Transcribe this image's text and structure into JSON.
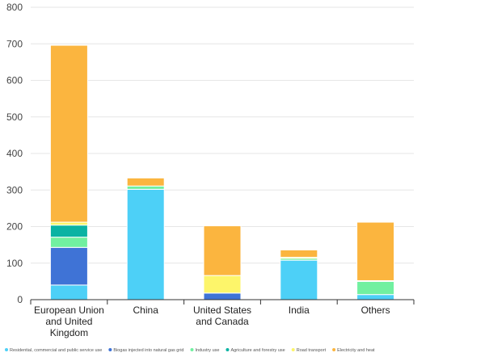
{
  "chart_data": {
    "type": "bar",
    "stacked": true,
    "categories": [
      [
        "European Union",
        "and United",
        "Kingdom"
      ],
      [
        "China"
      ],
      [
        "United States",
        "and Canada"
      ],
      [
        "India"
      ],
      [
        "Others"
      ]
    ],
    "ylim": [
      0,
      800
    ],
    "yticks": [
      0,
      100,
      200,
      300,
      400,
      500,
      600,
      700,
      800
    ],
    "grid": true,
    "legend_position": "bottom",
    "series": [
      {
        "name": "Residential, commercial and public service use",
        "color": "#4dd0f7",
        "values": [
          40,
          302,
          0,
          108,
          14
        ]
      },
      {
        "name": "Biogas injected into natural gas grid",
        "color": "#3f73d6",
        "values": [
          103,
          0,
          18,
          0,
          0
        ]
      },
      {
        "name": "Industry use",
        "color": "#71f0a0",
        "values": [
          28,
          9,
          0,
          5,
          36
        ]
      },
      {
        "name": "Agriculture and forestry use",
        "color": "#0ab3a3",
        "values": [
          33,
          0,
          0,
          0,
          0
        ]
      },
      {
        "name": "Road transport",
        "color": "#fdf56a",
        "values": [
          8,
          0,
          48,
          3,
          2
        ]
      },
      {
        "name": "Electricity and heat",
        "color": "#fbb53f",
        "values": [
          484,
          22,
          136,
          20,
          160
        ]
      }
    ]
  }
}
